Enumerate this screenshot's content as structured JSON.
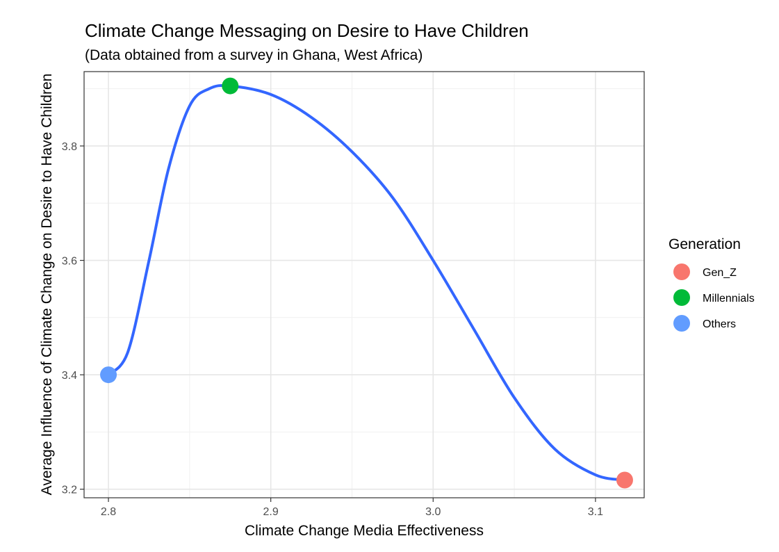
{
  "chart_data": {
    "type": "scatter",
    "title": "Climate Change Messaging on Desire to Have Children",
    "subtitle": "(Data obtained from a survey in Ghana, West Africa)",
    "xlabel": "Climate Change Media Effectiveness",
    "ylabel": "Average Influence of Climate Change on Desire to Have Children",
    "xlim": [
      2.785,
      3.13
    ],
    "ylim": [
      3.185,
      3.93
    ],
    "x_ticks": [
      "2.8",
      "2.9",
      "3.0",
      "3.1"
    ],
    "y_ticks": [
      "3.2",
      "3.4",
      "3.6",
      "3.8"
    ],
    "grid": true,
    "legend": {
      "title": "Generation",
      "position": "right",
      "entries": [
        "Gen_Z",
        "Millennials",
        "Others"
      ]
    },
    "points": [
      {
        "group": "Gen_Z",
        "x": 3.118,
        "y": 3.216
      },
      {
        "group": "Millennials",
        "x": 2.875,
        "y": 3.905
      },
      {
        "group": "Others",
        "x": 2.8,
        "y": 3.4
      }
    ],
    "smooth_line": {
      "color": "#3366ff",
      "x": [
        2.8,
        2.812,
        2.825,
        2.837,
        2.85,
        2.862,
        2.875,
        2.9,
        2.925,
        2.95,
        2.975,
        3.0,
        3.025,
        3.05,
        3.075,
        3.1,
        3.118
      ],
      "y": [
        3.4,
        3.44,
        3.6,
        3.76,
        3.87,
        3.9,
        3.905,
        3.89,
        3.85,
        3.79,
        3.71,
        3.6,
        3.48,
        3.36,
        3.27,
        3.225,
        3.216
      ]
    },
    "colors": {
      "Gen_Z": "#f8766d",
      "Millennials": "#00ba38",
      "Others": "#619cff"
    }
  }
}
